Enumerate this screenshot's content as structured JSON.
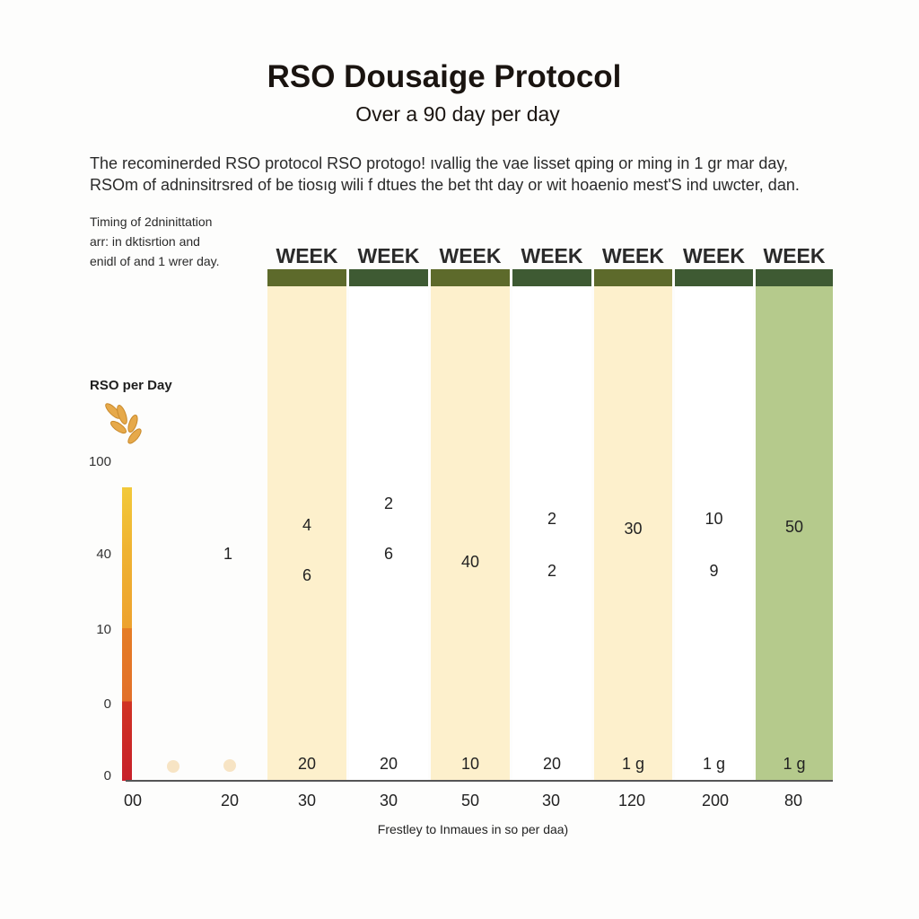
{
  "title": "RSO Dousaige Protocol",
  "subtitle": "Over a 90 day per day",
  "description": [
    "The recominerded RSO protocol RSO protogo! ıvallig the vae lisset qping or ming in 1 gr mar day,",
    "RSOm of adninsitrsred of be tiosıg wili f dtues the bet tht day or wit hoaenio mest'S ind uwcter, dan."
  ],
  "side_note": [
    "Timing of 2dninittation",
    "arr: in dktisrtion and",
    "enidl of and 1 wrer day."
  ],
  "chart_data": {
    "type": "table",
    "title": "RSO Dousaige Protocol",
    "subtitle": "Over a 90 day per day",
    "ylabel": "RSO per Day",
    "xlabel": "Frestley to Inmaues in so per daa)",
    "y_tick_labels": [
      "100",
      "40",
      "10",
      "0",
      "0"
    ],
    "x_tick_labels": [
      "00",
      "20",
      "30",
      "30",
      "50",
      "30",
      "120",
      "200",
      "80"
    ],
    "column_headers": [
      "WEEK",
      "WEEK",
      "WEEK",
      "WEEK",
      "WEEK",
      "WEEK",
      "WEEK"
    ],
    "pre_column_values": [
      "1"
    ],
    "columns": [
      {
        "values": [
          "4",
          "6"
        ],
        "bottom": "20",
        "fill": "#fdf0cc",
        "header_color": "#5d6a2b"
      },
      {
        "values": [
          "2",
          "6"
        ],
        "bottom": "20",
        "fill": "#ffffff",
        "header_color": "#3e5a33"
      },
      {
        "values": [
          "40"
        ],
        "bottom": "10",
        "fill": "#fdf0cc",
        "header_color": "#5d6a2b"
      },
      {
        "values": [
          "2",
          "2"
        ],
        "bottom": "20",
        "fill": "#ffffff",
        "header_color": "#3e5a33"
      },
      {
        "values": [
          "30"
        ],
        "bottom": "1 g",
        "fill": "#fdf0cc",
        "header_color": "#5d6a2b"
      },
      {
        "values": [
          "10",
          "9"
        ],
        "bottom": "1 g",
        "fill": "#ffffff",
        "header_color": "#3e5a33"
      },
      {
        "values": [
          "50"
        ],
        "bottom": "1 g",
        "fill": "#b5ca8c",
        "header_color": "#3e5a33"
      }
    ],
    "scale_gradient": [
      "#f2c93a",
      "#eda22e",
      "#e57d25",
      "#c7202a"
    ],
    "grid": false
  }
}
